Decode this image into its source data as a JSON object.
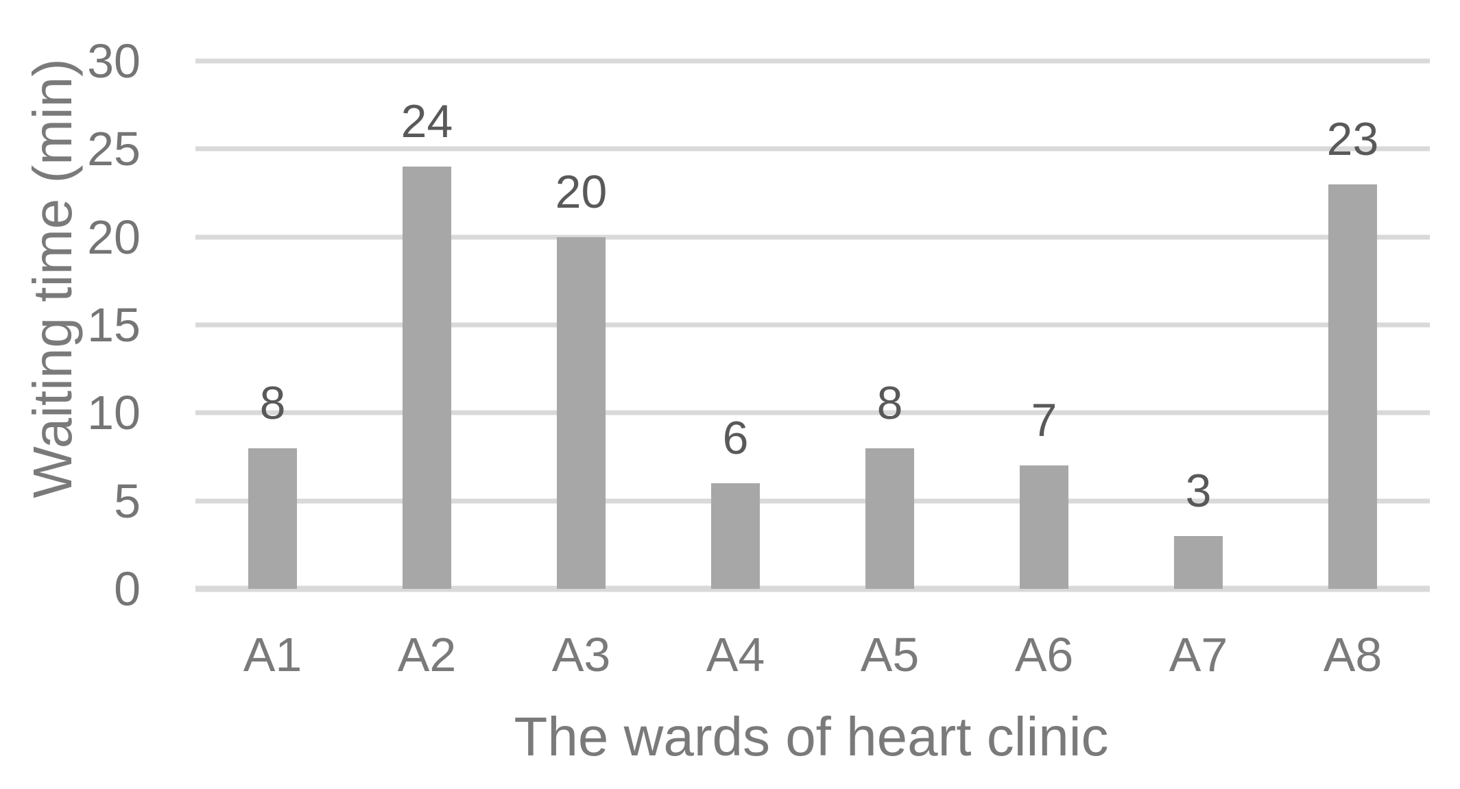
{
  "chart_data": {
    "type": "bar",
    "categories": [
      "A1",
      "A2",
      "A3",
      "A4",
      "A5",
      "A6",
      "A7",
      "A8"
    ],
    "values": [
      8,
      24,
      20,
      6,
      8,
      7,
      3,
      23
    ],
    "data_labels": [
      "8",
      "24",
      "20",
      "6",
      "8",
      "7",
      "3",
      "23"
    ],
    "title": "",
    "xlabel": "The wards of heart clinic",
    "ylabel": "Waiting time (min)",
    "ylim": [
      0,
      30
    ],
    "yticks": [
      0,
      5,
      10,
      15,
      20,
      25,
      30
    ],
    "ytick_labels": [
      "0",
      "5",
      "10",
      "15",
      "20",
      "25",
      "30"
    ],
    "grid": true,
    "legend": false,
    "colors": {
      "bar": "#a7a7a7",
      "gridline": "#d9d9d9",
      "axis_line": "#d9d9d9",
      "tick_label": "#757575",
      "x_tick_label": "#7a7a7a",
      "data_label": "#595959",
      "axis_title": "#7a7a7a",
      "background": "#ffffff"
    }
  }
}
